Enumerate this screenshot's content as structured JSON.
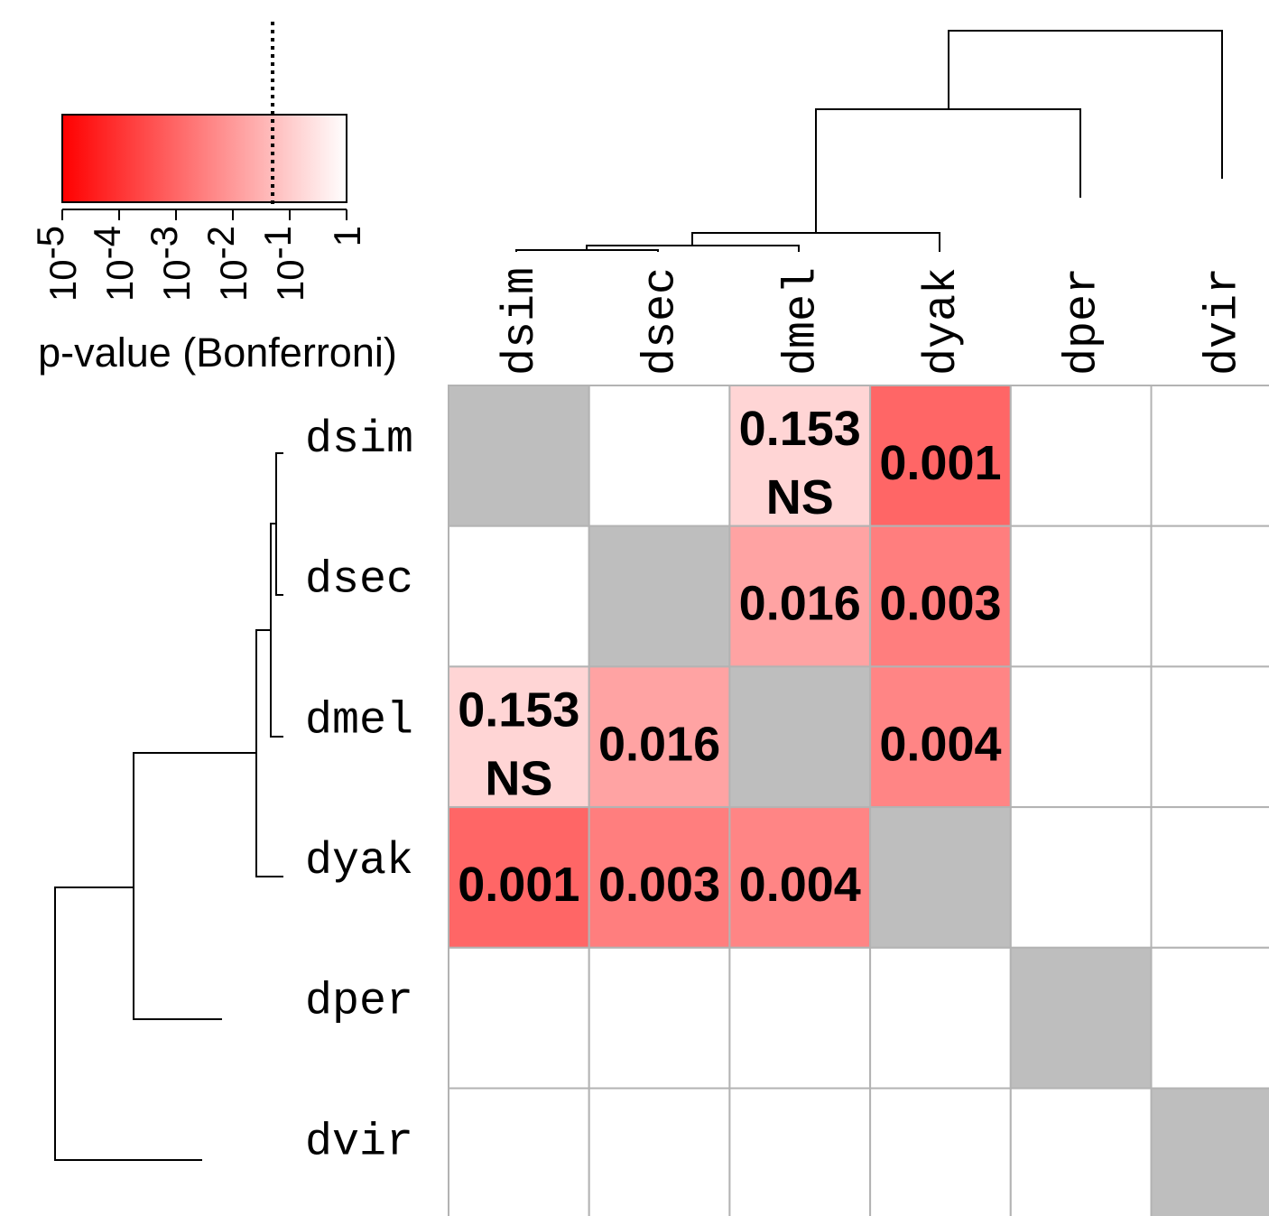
{
  "chart_data": {
    "type": "heatmap",
    "rows": [
      "dsim",
      "dsec",
      "dmel",
      "dyak",
      "dper",
      "dvir"
    ],
    "columns": [
      "dsim",
      "dsec",
      "dmel",
      "dyak",
      "dper",
      "dvir"
    ],
    "cells": [
      {
        "row": 0,
        "col": 2,
        "value": 0.153,
        "label": "0.153",
        "sublabel": "NS"
      },
      {
        "row": 0,
        "col": 3,
        "value": 0.001,
        "label": "0.001",
        "sublabel": ""
      },
      {
        "row": 1,
        "col": 2,
        "value": 0.016,
        "label": "0.016",
        "sublabel": ""
      },
      {
        "row": 1,
        "col": 3,
        "value": 0.003,
        "label": "0.003",
        "sublabel": ""
      },
      {
        "row": 2,
        "col": 0,
        "value": 0.153,
        "label": "0.153",
        "sublabel": "NS"
      },
      {
        "row": 2,
        "col": 1,
        "value": 0.016,
        "label": "0.016",
        "sublabel": ""
      },
      {
        "row": 2,
        "col": 3,
        "value": 0.004,
        "label": "0.004",
        "sublabel": ""
      },
      {
        "row": 3,
        "col": 0,
        "value": 0.001,
        "label": "0.001",
        "sublabel": ""
      },
      {
        "row": 3,
        "col": 1,
        "value": 0.003,
        "label": "0.003",
        "sublabel": ""
      },
      {
        "row": 3,
        "col": 2,
        "value": 0.004,
        "label": "0.004",
        "sublabel": ""
      }
    ],
    "diagonal": "grey",
    "colorbar": {
      "label": "p-value (Bonferroni)",
      "scale": "log",
      "range": [
        1e-05,
        1
      ],
      "ticks": [
        {
          "base": "10",
          "exp": "-5",
          "value": 1e-05
        },
        {
          "base": "10",
          "exp": "-4",
          "value": 0.0001
        },
        {
          "base": "10",
          "exp": "-3",
          "value": 0.001
        },
        {
          "base": "10",
          "exp": "-2",
          "value": 0.01
        },
        {
          "base": "10",
          "exp": "-1",
          "value": 0.1
        },
        {
          "base": "1",
          "exp": "",
          "value": 1
        }
      ],
      "threshold": 0.05,
      "color_low": "#ff0000",
      "color_high": "#ffffff"
    },
    "dendrogram": "(dvir,(dper,(dyak,(dmel,(dsim,dsec)))))"
  }
}
